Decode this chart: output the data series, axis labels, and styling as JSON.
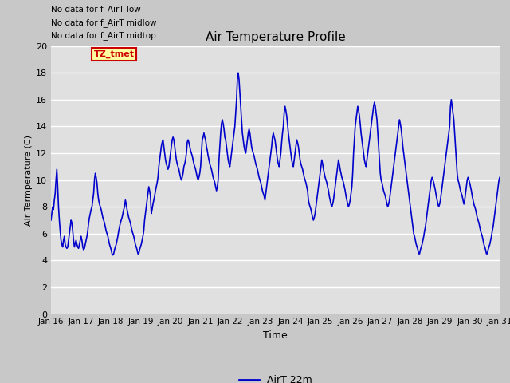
{
  "title": "Air Temperature Profile",
  "xlabel": "Time",
  "ylabel": "Air Termperature (C)",
  "ylim": [
    0,
    20
  ],
  "line_color": "#0000cc",
  "line_width": 1.2,
  "fig_facecolor": "#c8c8c8",
  "ax_facecolor": "#e0e0e0",
  "legend_label": "AirT 22m",
  "no_data_texts": [
    "No data for f_AirT low",
    "No data for f_AirT midlow",
    "No data for f_AirT midtop"
  ],
  "tz_label": "TZ_tmet",
  "tick_labels": [
    "Jan 16",
    "Jan 17",
    "Jan 18",
    "Jan 19",
    "Jan 20",
    "Jan 21",
    "Jan 22",
    "Jan 23",
    "Jan 24",
    "Jan 25",
    "Jan 26",
    "Jan 27",
    "Jan 28",
    "Jan 29",
    "Jan 30",
    "Jan 31"
  ],
  "yticks": [
    0,
    2,
    4,
    6,
    8,
    10,
    12,
    14,
    16,
    18,
    20
  ],
  "temperature_data": [
    7.0,
    7.5,
    8.0,
    7.8,
    8.5,
    9.0,
    10.0,
    10.8,
    9.5,
    8.0,
    7.0,
    6.2,
    5.5,
    5.2,
    5.0,
    5.5,
    5.8,
    5.2,
    5.0,
    4.9,
    5.0,
    5.5,
    6.0,
    6.5,
    7.0,
    6.8,
    6.2,
    5.5,
    5.0,
    5.3,
    5.5,
    5.2,
    5.0,
    4.9,
    5.2,
    5.5,
    5.8,
    5.5,
    5.0,
    4.8,
    4.9,
    5.2,
    5.5,
    5.8,
    6.2,
    6.8,
    7.2,
    7.5,
    7.8,
    8.0,
    8.5,
    9.0,
    10.0,
    10.5,
    10.2,
    9.8,
    9.0,
    8.5,
    8.2,
    8.0,
    7.8,
    7.5,
    7.2,
    7.0,
    6.8,
    6.5,
    6.2,
    6.0,
    5.8,
    5.5,
    5.2,
    5.0,
    4.8,
    4.5,
    4.4,
    4.5,
    4.8,
    5.0,
    5.2,
    5.5,
    5.8,
    6.2,
    6.5,
    6.8,
    7.0,
    7.2,
    7.5,
    7.8,
    8.0,
    8.5,
    8.2,
    7.8,
    7.5,
    7.2,
    7.0,
    6.8,
    6.5,
    6.2,
    6.0,
    5.8,
    5.5,
    5.2,
    5.0,
    4.8,
    4.5,
    4.5,
    4.8,
    5.0,
    5.2,
    5.5,
    5.8,
    6.2,
    7.0,
    7.5,
    8.0,
    8.5,
    9.0,
    9.5,
    9.2,
    8.8,
    7.5,
    7.8,
    8.2,
    8.5,
    8.8,
    9.2,
    9.5,
    9.8,
    10.2,
    11.0,
    11.5,
    12.0,
    12.5,
    12.8,
    13.0,
    12.5,
    12.0,
    11.5,
    11.2,
    11.0,
    10.8,
    11.0,
    11.5,
    12.0,
    12.5,
    13.0,
    13.2,
    13.0,
    12.5,
    12.0,
    11.5,
    11.2,
    11.0,
    10.8,
    10.5,
    10.2,
    10.0,
    10.2,
    10.5,
    11.0,
    11.2,
    11.5,
    12.0,
    12.8,
    13.0,
    12.8,
    12.5,
    12.2,
    12.0,
    11.8,
    11.5,
    11.2,
    11.0,
    10.8,
    10.5,
    10.2,
    10.0,
    10.2,
    10.5,
    11.0,
    12.0,
    13.0,
    13.2,
    13.5,
    13.2,
    13.0,
    12.5,
    12.2,
    11.8,
    11.5,
    11.2,
    11.0,
    10.8,
    10.5,
    10.2,
    10.0,
    9.8,
    9.5,
    9.2,
    9.5,
    10.0,
    11.5,
    12.5,
    13.5,
    14.2,
    14.5,
    14.2,
    13.8,
    13.2,
    13.0,
    12.5,
    12.0,
    11.5,
    11.2,
    11.0,
    11.5,
    12.0,
    12.5,
    13.0,
    13.5,
    14.0,
    15.0,
    16.0,
    17.5,
    18.0,
    17.5,
    16.5,
    15.5,
    14.5,
    13.5,
    13.0,
    12.5,
    12.2,
    12.0,
    12.5,
    13.0,
    13.5,
    13.8,
    13.5,
    13.0,
    12.5,
    12.2,
    12.0,
    11.8,
    11.5,
    11.2,
    11.0,
    10.8,
    10.5,
    10.2,
    10.0,
    9.8,
    9.5,
    9.2,
    9.0,
    8.8,
    8.5,
    9.0,
    9.5,
    10.0,
    10.5,
    11.0,
    11.5,
    12.0,
    12.5,
    13.2,
    13.5,
    13.2,
    13.0,
    12.5,
    12.0,
    11.5,
    11.2,
    11.0,
    11.5,
    12.0,
    12.8,
    13.5,
    14.0,
    15.0,
    15.5,
    15.2,
    14.8,
    14.2,
    13.5,
    13.0,
    12.5,
    12.0,
    11.5,
    11.2,
    11.0,
    11.5,
    12.0,
    12.5,
    13.0,
    12.8,
    12.5,
    12.0,
    11.5,
    11.2,
    11.0,
    10.8,
    10.5,
    10.2,
    10.0,
    9.8,
    9.5,
    9.2,
    8.5,
    8.2,
    8.0,
    7.8,
    7.5,
    7.2,
    7.0,
    7.2,
    7.5,
    8.0,
    8.5,
    9.0,
    9.5,
    10.0,
    10.5,
    11.0,
    11.5,
    11.2,
    10.8,
    10.5,
    10.2,
    10.0,
    9.8,
    9.5,
    9.2,
    8.8,
    8.5,
    8.2,
    8.0,
    8.2,
    8.5,
    9.0,
    9.5,
    10.0,
    10.5,
    11.0,
    11.5,
    11.2,
    10.8,
    10.5,
    10.2,
    10.0,
    9.8,
    9.5,
    9.2,
    8.8,
    8.5,
    8.2,
    8.0,
    8.2,
    8.5,
    9.0,
    9.5,
    10.5,
    12.0,
    13.0,
    14.0,
    14.5,
    15.0,
    15.5,
    15.2,
    14.8,
    14.2,
    13.5,
    13.0,
    12.5,
    12.0,
    11.5,
    11.2,
    11.0,
    11.5,
    12.0,
    12.5,
    13.0,
    13.5,
    14.0,
    14.5,
    15.0,
    15.5,
    15.8,
    15.5,
    15.0,
    14.5,
    13.5,
    12.5,
    11.5,
    10.5,
    10.0,
    9.8,
    9.5,
    9.2,
    9.0,
    8.8,
    8.5,
    8.2,
    8.0,
    8.2,
    8.5,
    9.0,
    9.5,
    10.0,
    10.5,
    11.0,
    11.5,
    12.0,
    12.5,
    13.0,
    13.5,
    14.0,
    14.5,
    14.2,
    13.8,
    13.2,
    12.5,
    12.0,
    11.5,
    11.0,
    10.5,
    10.0,
    9.5,
    9.0,
    8.5,
    8.0,
    7.5,
    7.0,
    6.5,
    6.0,
    5.8,
    5.5,
    5.2,
    5.0,
    4.8,
    4.5,
    4.5,
    4.8,
    5.0,
    5.2,
    5.5,
    5.8,
    6.2,
    6.5,
    7.0,
    7.5,
    8.0,
    8.5,
    9.0,
    9.5,
    10.0,
    10.2,
    10.0,
    9.8,
    9.5,
    9.2,
    8.8,
    8.5,
    8.2,
    8.0,
    8.2,
    8.5,
    9.0,
    9.5,
    10.0,
    10.5,
    11.0,
    11.5,
    12.0,
    12.5,
    13.0,
    13.5,
    14.0,
    15.5,
    16.0,
    15.5,
    15.0,
    14.5,
    13.5,
    12.5,
    11.5,
    10.5,
    10.0,
    9.8,
    9.5,
    9.2,
    9.0,
    8.8,
    8.5,
    8.2,
    8.5,
    9.0,
    9.5,
    10.0,
    10.2,
    10.0,
    9.8,
    9.5,
    9.2,
    8.8,
    8.5,
    8.2,
    8.0,
    7.8,
    7.5,
    7.2,
    7.0,
    6.8,
    6.5,
    6.2,
    6.0,
    5.8,
    5.5,
    5.2,
    5.0,
    4.8,
    4.5,
    4.5,
    4.8,
    5.0,
    5.2,
    5.5,
    5.8,
    6.2,
    6.5,
    7.0,
    7.5,
    8.0,
    8.5,
    9.0,
    9.5,
    10.0,
    10.2
  ]
}
